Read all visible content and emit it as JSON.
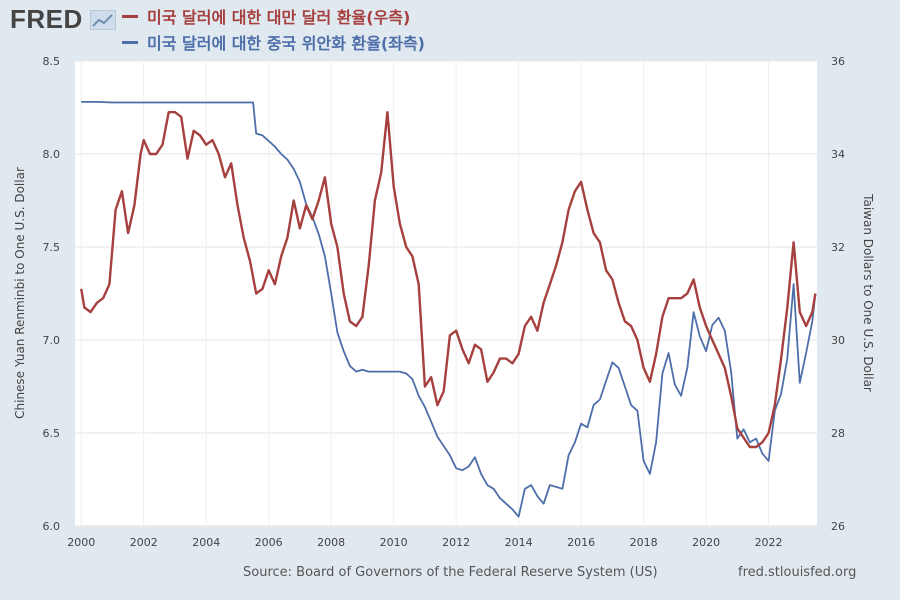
{
  "header": {
    "logo_text": "FRED",
    "logo_icon": "chart-line-icon"
  },
  "chart_data": {
    "type": "line",
    "x_range": [
      1999.8,
      2023.55
    ],
    "x_ticks": [
      2000,
      2002,
      2004,
      2006,
      2008,
      2010,
      2012,
      2014,
      2016,
      2018,
      2020,
      2022
    ],
    "left_axis": {
      "label": "Chinese Yuan Renminbi to One U.S. Dollar",
      "range": [
        6.0,
        8.5
      ],
      "ticks": [
        6.0,
        6.5,
        7.0,
        7.5,
        8.0,
        8.5
      ],
      "tick_labels": [
        "6.0",
        "6.5",
        "7.0",
        "7.5",
        "8.0",
        "8.5"
      ]
    },
    "right_axis": {
      "label": "Taiwan Dollars to One U.S. Dollar",
      "range": [
        26,
        36
      ],
      "ticks": [
        26,
        28,
        30,
        32,
        34,
        36
      ],
      "tick_labels": [
        "26",
        "28",
        "30",
        "32",
        "34",
        "36"
      ]
    },
    "grid": true,
    "series": [
      {
        "name": "미국 달러에 대한 대만 달러 환율(우측)",
        "axis": "right",
        "color": "#a6403e",
        "points": [
          [
            2000.0,
            31.1
          ],
          [
            2000.1,
            30.7
          ],
          [
            2000.3,
            30.6
          ],
          [
            2000.5,
            30.8
          ],
          [
            2000.7,
            30.9
          ],
          [
            2000.9,
            31.2
          ],
          [
            2001.1,
            32.8
          ],
          [
            2001.3,
            33.2
          ],
          [
            2001.5,
            32.3
          ],
          [
            2001.7,
            32.9
          ],
          [
            2001.9,
            34.0
          ],
          [
            2002.0,
            34.3
          ],
          [
            2002.2,
            34.0
          ],
          [
            2002.4,
            34.0
          ],
          [
            2002.6,
            34.2
          ],
          [
            2002.8,
            34.9
          ],
          [
            2003.0,
            34.9
          ],
          [
            2003.2,
            34.8
          ],
          [
            2003.4,
            33.9
          ],
          [
            2003.6,
            34.5
          ],
          [
            2003.8,
            34.4
          ],
          [
            2004.0,
            34.2
          ],
          [
            2004.2,
            34.3
          ],
          [
            2004.4,
            34.0
          ],
          [
            2004.6,
            33.5
          ],
          [
            2004.8,
            33.8
          ],
          [
            2005.0,
            32.9
          ],
          [
            2005.2,
            32.2
          ],
          [
            2005.4,
            31.7
          ],
          [
            2005.6,
            31.0
          ],
          [
            2005.8,
            31.1
          ],
          [
            2006.0,
            31.5
          ],
          [
            2006.2,
            31.2
          ],
          [
            2006.4,
            31.8
          ],
          [
            2006.6,
            32.2
          ],
          [
            2006.8,
            33.0
          ],
          [
            2007.0,
            32.4
          ],
          [
            2007.2,
            32.9
          ],
          [
            2007.4,
            32.6
          ],
          [
            2007.6,
            33.0
          ],
          [
            2007.8,
            33.5
          ],
          [
            2008.0,
            32.5
          ],
          [
            2008.2,
            32.0
          ],
          [
            2008.4,
            31.0
          ],
          [
            2008.6,
            30.4
          ],
          [
            2008.8,
            30.3
          ],
          [
            2009.0,
            30.5
          ],
          [
            2009.2,
            31.6
          ],
          [
            2009.4,
            33.0
          ],
          [
            2009.6,
            33.6
          ],
          [
            2009.8,
            34.9
          ],
          [
            2010.0,
            33.3
          ],
          [
            2010.2,
            32.5
          ],
          [
            2010.4,
            32.0
          ],
          [
            2010.6,
            31.8
          ],
          [
            2010.8,
            31.2
          ],
          [
            2011.0,
            29.0
          ],
          [
            2011.2,
            29.2
          ],
          [
            2011.4,
            28.6
          ],
          [
            2011.6,
            28.9
          ],
          [
            2011.8,
            30.1
          ],
          [
            2012.0,
            30.2
          ],
          [
            2012.2,
            29.8
          ],
          [
            2012.4,
            29.5
          ],
          [
            2012.6,
            29.9
          ],
          [
            2012.8,
            29.8
          ],
          [
            2013.0,
            29.1
          ],
          [
            2013.2,
            29.3
          ],
          [
            2013.4,
            29.6
          ],
          [
            2013.6,
            29.6
          ],
          [
            2013.8,
            29.5
          ],
          [
            2014.0,
            29.7
          ],
          [
            2014.2,
            30.3
          ],
          [
            2014.4,
            30.5
          ],
          [
            2014.6,
            30.2
          ],
          [
            2014.8,
            30.8
          ],
          [
            2015.0,
            31.2
          ],
          [
            2015.2,
            31.6
          ],
          [
            2015.4,
            32.1
          ],
          [
            2015.6,
            32.8
          ],
          [
            2015.8,
            33.2
          ],
          [
            2016.0,
            33.4
          ],
          [
            2016.2,
            32.8
          ],
          [
            2016.4,
            32.3
          ],
          [
            2016.6,
            32.1
          ],
          [
            2016.8,
            31.5
          ],
          [
            2017.0,
            31.3
          ],
          [
            2017.2,
            30.8
          ],
          [
            2017.4,
            30.4
          ],
          [
            2017.6,
            30.3
          ],
          [
            2017.8,
            30.0
          ],
          [
            2018.0,
            29.4
          ],
          [
            2018.2,
            29.1
          ],
          [
            2018.4,
            29.7
          ],
          [
            2018.6,
            30.5
          ],
          [
            2018.8,
            30.9
          ],
          [
            2019.0,
            30.9
          ],
          [
            2019.2,
            30.9
          ],
          [
            2019.4,
            31.0
          ],
          [
            2019.6,
            31.3
          ],
          [
            2019.8,
            30.7
          ],
          [
            2020.0,
            30.3
          ],
          [
            2020.2,
            30.0
          ],
          [
            2020.4,
            29.7
          ],
          [
            2020.6,
            29.4
          ],
          [
            2020.8,
            28.8
          ],
          [
            2021.0,
            28.1
          ],
          [
            2021.2,
            27.9
          ],
          [
            2021.4,
            27.7
          ],
          [
            2021.6,
            27.7
          ],
          [
            2021.8,
            27.8
          ],
          [
            2022.0,
            28.0
          ],
          [
            2022.2,
            28.6
          ],
          [
            2022.4,
            29.6
          ],
          [
            2022.6,
            30.7
          ],
          [
            2022.8,
            32.1
          ],
          [
            2023.0,
            30.6
          ],
          [
            2023.2,
            30.3
          ],
          [
            2023.4,
            30.6
          ],
          [
            2023.5,
            31.0
          ]
        ]
      },
      {
        "name": "미국 달러에 대한 중국 위안화 환율(좌측)",
        "axis": "left",
        "color": "#4d6ea9",
        "points": [
          [
            2000.0,
            8.28
          ],
          [
            2000.5,
            8.28
          ],
          [
            2001.0,
            8.277
          ],
          [
            2001.5,
            8.277
          ],
          [
            2002.0,
            8.277
          ],
          [
            2002.5,
            8.277
          ],
          [
            2003.0,
            8.277
          ],
          [
            2003.5,
            8.277
          ],
          [
            2004.0,
            8.277
          ],
          [
            2004.5,
            8.277
          ],
          [
            2005.0,
            8.277
          ],
          [
            2005.5,
            8.277
          ],
          [
            2005.6,
            8.11
          ],
          [
            2005.8,
            8.1
          ],
          [
            2006.0,
            8.07
          ],
          [
            2006.2,
            8.04
          ],
          [
            2006.4,
            8.0
          ],
          [
            2006.6,
            7.97
          ],
          [
            2006.8,
            7.92
          ],
          [
            2007.0,
            7.85
          ],
          [
            2007.2,
            7.73
          ],
          [
            2007.4,
            7.66
          ],
          [
            2007.6,
            7.57
          ],
          [
            2007.8,
            7.45
          ],
          [
            2008.0,
            7.25
          ],
          [
            2008.2,
            7.04
          ],
          [
            2008.4,
            6.94
          ],
          [
            2008.6,
            6.86
          ],
          [
            2008.8,
            6.83
          ],
          [
            2009.0,
            6.84
          ],
          [
            2009.2,
            6.83
          ],
          [
            2009.4,
            6.83
          ],
          [
            2009.6,
            6.83
          ],
          [
            2009.8,
            6.83
          ],
          [
            2010.0,
            6.83
          ],
          [
            2010.2,
            6.83
          ],
          [
            2010.4,
            6.82
          ],
          [
            2010.6,
            6.79
          ],
          [
            2010.8,
            6.7
          ],
          [
            2011.0,
            6.64
          ],
          [
            2011.2,
            6.56
          ],
          [
            2011.4,
            6.48
          ],
          [
            2011.6,
            6.43
          ],
          [
            2011.8,
            6.38
          ],
          [
            2012.0,
            6.31
          ],
          [
            2012.2,
            6.3
          ],
          [
            2012.4,
            6.32
          ],
          [
            2012.6,
            6.37
          ],
          [
            2012.8,
            6.28
          ],
          [
            2013.0,
            6.22
          ],
          [
            2013.2,
            6.2
          ],
          [
            2013.4,
            6.15
          ],
          [
            2013.6,
            6.12
          ],
          [
            2013.8,
            6.09
          ],
          [
            2014.0,
            6.05
          ],
          [
            2014.2,
            6.2
          ],
          [
            2014.4,
            6.22
          ],
          [
            2014.6,
            6.16
          ],
          [
            2014.8,
            6.12
          ],
          [
            2015.0,
            6.22
          ],
          [
            2015.2,
            6.21
          ],
          [
            2015.4,
            6.2
          ],
          [
            2015.6,
            6.38
          ],
          [
            2015.8,
            6.45
          ],
          [
            2016.0,
            6.55
          ],
          [
            2016.2,
            6.53
          ],
          [
            2016.4,
            6.65
          ],
          [
            2016.6,
            6.68
          ],
          [
            2016.8,
            6.78
          ],
          [
            2017.0,
            6.88
          ],
          [
            2017.2,
            6.85
          ],
          [
            2017.4,
            6.75
          ],
          [
            2017.6,
            6.65
          ],
          [
            2017.8,
            6.62
          ],
          [
            2018.0,
            6.35
          ],
          [
            2018.2,
            6.28
          ],
          [
            2018.4,
            6.45
          ],
          [
            2018.6,
            6.82
          ],
          [
            2018.8,
            6.93
          ],
          [
            2019.0,
            6.76
          ],
          [
            2019.2,
            6.7
          ],
          [
            2019.4,
            6.85
          ],
          [
            2019.6,
            7.15
          ],
          [
            2019.8,
            7.02
          ],
          [
            2020.0,
            6.94
          ],
          [
            2020.2,
            7.08
          ],
          [
            2020.4,
            7.12
          ],
          [
            2020.6,
            7.05
          ],
          [
            2020.8,
            6.83
          ],
          [
            2021.0,
            6.47
          ],
          [
            2021.2,
            6.52
          ],
          [
            2021.4,
            6.45
          ],
          [
            2021.6,
            6.47
          ],
          [
            2021.8,
            6.39
          ],
          [
            2022.0,
            6.35
          ],
          [
            2022.2,
            6.62
          ],
          [
            2022.4,
            6.71
          ],
          [
            2022.6,
            6.9
          ],
          [
            2022.8,
            7.3
          ],
          [
            2023.0,
            6.77
          ],
          [
            2023.2,
            6.93
          ],
          [
            2023.4,
            7.1
          ],
          [
            2023.5,
            7.25
          ]
        ]
      }
    ]
  },
  "footer": {
    "source": "Source: Board of Governors of the Federal Reserve System (US)",
    "url": "fred.stlouisfed.org"
  }
}
